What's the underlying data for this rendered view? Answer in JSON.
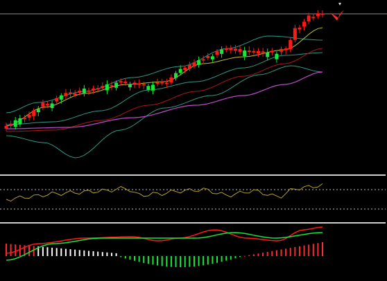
{
  "chart_data": {
    "type": "candlestick_with_indicators",
    "colors": {
      "background": "#000000",
      "candle_up": "#18e63a",
      "candle_down": "#ff1a1a",
      "bollinger": "#2f9a86",
      "fast_ma": "#c7c12a",
      "mid_ma": "#2f9a86",
      "slow_ma": "#b01616",
      "long_ma": "#c34bd0",
      "oscillator": "#b7a12a",
      "signal_red": "#ff1a1a",
      "signal_green": "#18e63a",
      "hist_pos": "#ff2a2a",
      "hist_neg": "#18e63a",
      "hist_neutral": "#ffffff",
      "separator": "#cfcfcf",
      "dotted": "#bfbfbf"
    },
    "price_pane": {
      "x_range": [
        0,
        100
      ],
      "y_range": [
        0,
        100
      ]
    },
    "oscillator_pane": {
      "y_range": [
        0,
        100
      ],
      "levels": [
        70,
        30
      ]
    },
    "macd_pane": {
      "y_range": [
        -10,
        10
      ]
    }
  }
}
